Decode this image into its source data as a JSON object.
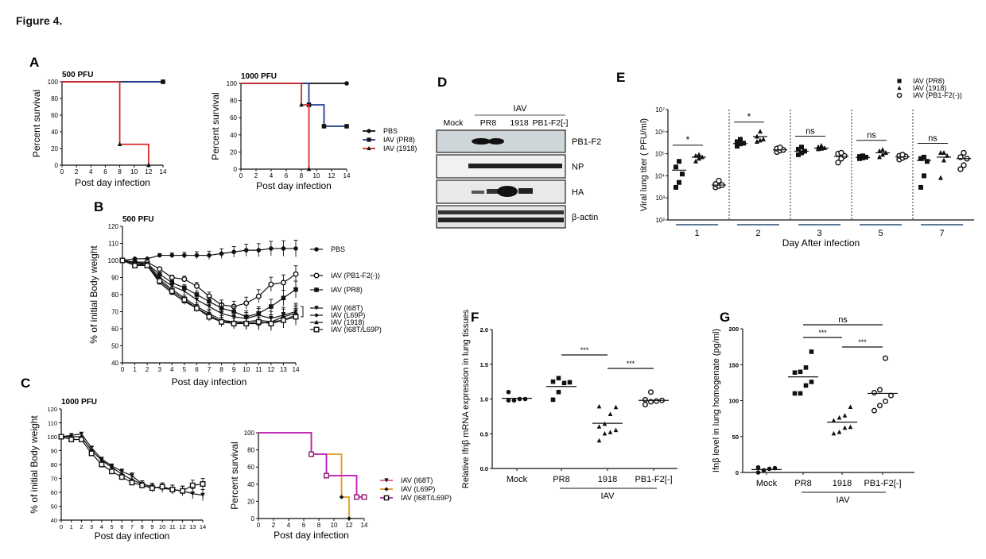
{
  "figure_title": "Figure 4.",
  "panel_letters": {
    "A": "A",
    "B": "B",
    "C": "C",
    "D": "D",
    "E": "E",
    "F": "F",
    "G": "G"
  },
  "colors": {
    "pbs": "#111111",
    "pr8": "#1f3a93",
    "p1918": "#d62a2a",
    "i68t": "#e05aa0",
    "l69p": "#e09a20",
    "dbl": "#c020c0",
    "bar": "#5b7a95"
  },
  "chart_data": [
    {
      "id": "A1",
      "type": "line",
      "step": true,
      "title": "500 PFU",
      "xlabel": "Post day infection",
      "ylabel": "Percent survival",
      "xlim": [
        0,
        14
      ],
      "ylim": [
        0,
        100
      ],
      "xticks": [
        0,
        2,
        4,
        6,
        8,
        10,
        12,
        14
      ],
      "yticks": [
        0,
        20,
        40,
        60,
        80,
        100
      ],
      "series": [
        {
          "name": "PBS",
          "color": "#111111",
          "marker": "circle",
          "x": [
            0,
            14
          ],
          "y": [
            100,
            100
          ]
        },
        {
          "name": "IAV (PR8)",
          "color": "#1f3a93",
          "marker": "square",
          "x": [
            0,
            14
          ],
          "y": [
            100,
            100
          ]
        },
        {
          "name": "IAV (1918)",
          "color": "#d62a2a",
          "marker": "triangle",
          "x": [
            0,
            8,
            12
          ],
          "y": [
            100,
            25,
            0
          ]
        }
      ]
    },
    {
      "id": "A2",
      "type": "line",
      "step": true,
      "title": "1000 PFU",
      "xlabel": "Post day infection",
      "ylabel": "Percent survival",
      "xlim": [
        0,
        14
      ],
      "ylim": [
        0,
        100
      ],
      "xticks": [
        0,
        2,
        4,
        6,
        8,
        10,
        12,
        14
      ],
      "yticks": [
        0,
        20,
        40,
        60,
        80,
        100
      ],
      "legend": [
        "PBS",
        "IAV (PR8)",
        "IAV (1918)"
      ],
      "legend_position": "right",
      "series": [
        {
          "name": "PBS",
          "color": "#111111",
          "marker": "circle",
          "x": [
            0,
            14
          ],
          "y": [
            100,
            100
          ]
        },
        {
          "name": "IAV (PR8)",
          "color": "#1f3a93",
          "marker": "square",
          "x": [
            0,
            9,
            11,
            14
          ],
          "y": [
            100,
            75,
            50,
            50
          ]
        },
        {
          "name": "IAV (1918)",
          "color": "#d62a2a",
          "marker": "triangle",
          "x": [
            0,
            8,
            9
          ],
          "y": [
            100,
            75,
            0
          ]
        }
      ]
    },
    {
      "id": "B",
      "type": "line",
      "title": "500 PFU",
      "xlabel": "Post day infection",
      "ylabel": "% of initial Body weight",
      "xlim": [
        0,
        14
      ],
      "ylim": [
        40,
        120
      ],
      "xticks": [
        0,
        1,
        2,
        3,
        4,
        5,
        6,
        7,
        8,
        9,
        10,
        11,
        12,
        13,
        14
      ],
      "yticks": [
        40,
        50,
        60,
        70,
        80,
        90,
        100,
        110,
        120
      ],
      "legend_position": "right",
      "x": [
        0,
        1,
        2,
        3,
        4,
        5,
        6,
        7,
        8,
        9,
        10,
        11,
        12,
        13,
        14
      ],
      "series": [
        {
          "name": "PBS",
          "marker": "circle",
          "y": [
            100,
            101,
            101,
            103,
            103,
            103,
            103,
            103,
            104,
            105,
            106,
            106,
            107,
            107,
            107
          ]
        },
        {
          "name": "IAV (PB1-F2(-))",
          "marker": "open-circle",
          "y": [
            100,
            99,
            99,
            95,
            90,
            89,
            85,
            79,
            74,
            73,
            75,
            79,
            86,
            87,
            92
          ]
        },
        {
          "name": "IAV (PR8)",
          "marker": "square",
          "y": [
            100,
            99,
            98,
            92,
            87,
            84,
            80,
            76,
            72,
            70,
            67,
            69,
            73,
            78,
            83
          ]
        },
        {
          "name": "IAV (I68T)",
          "marker": "triangle-down",
          "y": [
            100,
            98,
            98,
            90,
            85,
            82,
            77,
            73,
            69,
            67,
            66,
            68,
            66,
            68,
            70
          ]
        },
        {
          "name": "IAV (L69P)",
          "marker": "diamond",
          "y": [
            100,
            98,
            97,
            89,
            83,
            78,
            73,
            69,
            65,
            64,
            64,
            65,
            64,
            67,
            69
          ]
        },
        {
          "name": "IAV (1918)",
          "marker": "triangle",
          "y": [
            100,
            97,
            97,
            87,
            81,
            76,
            72,
            68,
            64,
            64,
            63,
            63,
            64,
            65,
            68
          ]
        },
        {
          "name": "IAV (I68T/L69P)",
          "marker": "open-square",
          "y": [
            100,
            97,
            97,
            88,
            82,
            77,
            72,
            67,
            64,
            63,
            63,
            64,
            63,
            65,
            67
          ]
        }
      ]
    },
    {
      "id": "C1",
      "type": "line",
      "title": "1000 PFU",
      "xlabel": "Post day infection",
      "ylabel": "% of initial Body weight",
      "xlim": [
        0,
        14
      ],
      "ylim": [
        40,
        120
      ],
      "xticks": [
        0,
        1,
        2,
        3,
        4,
        5,
        6,
        7,
        8,
        9,
        10,
        11,
        12,
        13,
        14
      ],
      "yticks": [
        40,
        50,
        60,
        70,
        80,
        90,
        100,
        110,
        120
      ],
      "x": [
        0,
        1,
        2,
        3,
        4,
        5,
        6,
        7,
        8,
        9,
        10,
        11,
        12,
        13,
        14
      ],
      "series": [
        {
          "name": "IAV (I68T)",
          "marker": "triangle-down",
          "y": [
            100,
            101,
            102,
            92,
            84,
            79,
            75,
            72,
            66,
            64,
            63,
            62,
            61,
            59,
            58
          ]
        },
        {
          "name": "IAV (L69P)",
          "marker": "diamond",
          "y": [
            100,
            100,
            100,
            90,
            83,
            78,
            73,
            69,
            66,
            64,
            63,
            62,
            61,
            null,
            null
          ]
        },
        {
          "name": "IAV (I68T/L69P)",
          "marker": "open-square",
          "y": [
            100,
            98,
            98,
            88,
            80,
            75,
            71,
            67,
            65,
            63,
            64,
            62,
            61,
            65,
            66
          ]
        }
      ]
    },
    {
      "id": "C2",
      "type": "line",
      "step": true,
      "xlabel": "Post day infection",
      "ylabel": "Percent survival",
      "xlim": [
        0,
        14
      ],
      "ylim": [
        0,
        100
      ],
      "xticks": [
        0,
        2,
        4,
        6,
        8,
        10,
        12,
        14
      ],
      "yticks": [
        0,
        20,
        40,
        60,
        80,
        100
      ],
      "legend": [
        "IAV (I68T)",
        "IAV (L69P)",
        "IAV (I68T/L69P)"
      ],
      "legend_position": "right",
      "series": [
        {
          "name": "IAV (I68T)",
          "color": "#e05aa0",
          "marker": "triangle-down",
          "x": [
            0,
            7,
            9,
            13,
            14
          ],
          "y": [
            100,
            75,
            50,
            25,
            25
          ]
        },
        {
          "name": "IAV (L69P)",
          "color": "#e09a20",
          "marker": "diamond",
          "x": [
            0,
            7,
            11,
            12
          ],
          "y": [
            100,
            75,
            25,
            0
          ]
        },
        {
          "name": "IAV (I68T/L69P)",
          "color": "#c020c0",
          "marker": "open-square",
          "x": [
            0,
            7,
            9,
            13,
            14
          ],
          "y": [
            100,
            75,
            50,
            25,
            25
          ]
        }
      ]
    },
    {
      "id": "D",
      "type": "table",
      "title": "Western blot",
      "group_label": "IAV",
      "lanes": [
        "Mock",
        "PR8",
        "1918",
        "PB1-F2[-]"
      ],
      "rows": [
        "PB1-F2",
        "NP",
        "HA",
        "β-actin"
      ]
    },
    {
      "id": "E",
      "type": "scatter",
      "log_y": true,
      "xlabel": "Day After infection",
      "ylabel": "Viral lung titer ( PFU/ml)",
      "ylim": [
        100,
        10000000
      ],
      "yticks": [
        "10²",
        "10³",
        "10⁴",
        "10⁵",
        "10⁶",
        "10⁷"
      ],
      "categories": [
        "1",
        "2",
        "3",
        "5",
        "7"
      ],
      "legend": [
        "IAV (PR8)",
        "IAV (1918)",
        "IAV (PB1-F2(-))"
      ],
      "legend_position": "top-right",
      "significance": [
        "*",
        "*",
        "ns",
        "ns",
        "ns"
      ],
      "series": [
        {
          "name": "IAV (PR8)",
          "marker": "square",
          "values": [
            [
              3000,
              5000,
              12000,
              25000,
              45000
            ],
            [
              220000,
              280000,
              300000,
              350000,
              450000
            ],
            [
              90000,
              110000,
              130000,
              160000,
              200000
            ],
            [
              60000,
              65000,
              70000,
              75000,
              80000
            ],
            [
              3000,
              10000,
              45000,
              60000,
              70000
            ]
          ]
        },
        {
          "name": "IAV (1918)",
          "marker": "triangle",
          "values": [
            [
              45000,
              60000,
              70000,
              80000,
              90000
            ],
            [
              350000,
              400000,
              450000,
              600000,
              1000000
            ],
            [
              160000,
              170000,
              180000,
              200000,
              230000
            ],
            [
              70000,
              90000,
              110000,
              130000,
              150000
            ],
            [
              8000,
              50000,
              80000,
              110000,
              110000
            ]
          ]
        },
        {
          "name": "IAV (PB1-F2(-))",
          "marker": "open-circle",
          "values": [
            [
              3000,
              3500,
              3800,
              4200,
              6000
            ],
            [
              120000,
              140000,
              150000,
              170000,
              190000
            ],
            [
              40000,
              60000,
              80000,
              100000,
              110000
            ],
            [
              55000,
              65000,
              75000,
              80000,
              90000
            ],
            [
              20000,
              30000,
              60000,
              70000,
              110000
            ]
          ]
        }
      ],
      "means": [
        [
          18000,
          70000,
          3800
        ],
        [
          290000,
          600000,
          150000
        ],
        [
          130000,
          180000,
          75000
        ],
        [
          68000,
          110000,
          72000
        ],
        [
          50000,
          70000,
          60000
        ]
      ]
    },
    {
      "id": "F",
      "type": "scatter",
      "ylabel": "Relative Ifnβ mRNA expression in lung tissues",
      "ylim": [
        0,
        2.0
      ],
      "yticks": [
        "0.0",
        "0.5",
        "1.0",
        "1.5",
        "2.0"
      ],
      "categories": [
        "Mock",
        "PR8",
        "1918",
        "PB1-F2[-]"
      ],
      "group_label": "IAV",
      "markers": [
        "circle",
        "square",
        "triangle",
        "open-circle"
      ],
      "values": [
        [
          0.98,
          0.98,
          1.0,
          1.0,
          1.1
        ],
        [
          0.99,
          1.1,
          1.23,
          1.24,
          1.25,
          1.3
        ],
        [
          0.4,
          0.5,
          0.52,
          0.55,
          0.6,
          0.64,
          0.78,
          0.88,
          0.89
        ],
        [
          0.92,
          0.96,
          0.97,
          0.98,
          0.99,
          1.1
        ]
      ],
      "means": [
        1.01,
        1.18,
        0.65,
        0.98
      ],
      "significance": [
        {
          "from": "PR8",
          "to": "1918",
          "label": "***"
        },
        {
          "from": "1918",
          "to": "PB1-F2[-]",
          "label": "***"
        }
      ]
    },
    {
      "id": "G",
      "type": "scatter",
      "ylabel": "Ifnβ level in lung homogenate (pg/ml)",
      "ylim": [
        0,
        200
      ],
      "yticks": [
        "0",
        "50",
        "100",
        "150",
        "200"
      ],
      "categories": [
        "Mock",
        "PR8",
        "1918",
        "PB1-F2[-]"
      ],
      "group_label": "IAV",
      "markers": [
        "circle",
        "square",
        "triangle",
        "open-circle"
      ],
      "values": [
        [
          0,
          3,
          5,
          6,
          7
        ],
        [
          110,
          110,
          121,
          126,
          139,
          140,
          146,
          168
        ],
        [
          54,
          56,
          62,
          63,
          72,
          76,
          79,
          91
        ],
        [
          86,
          93,
          99,
          107,
          111,
          115,
          159
        ]
      ],
      "means": [
        4,
        133,
        70,
        110
      ],
      "significance": [
        {
          "from": "PR8",
          "to": "PB1-F2[-]",
          "label": "ns"
        },
        {
          "from": "PR8",
          "to": "1918",
          "label": "***"
        },
        {
          "from": "1918",
          "to": "PB1-F2[-]",
          "label": "***"
        }
      ]
    }
  ]
}
